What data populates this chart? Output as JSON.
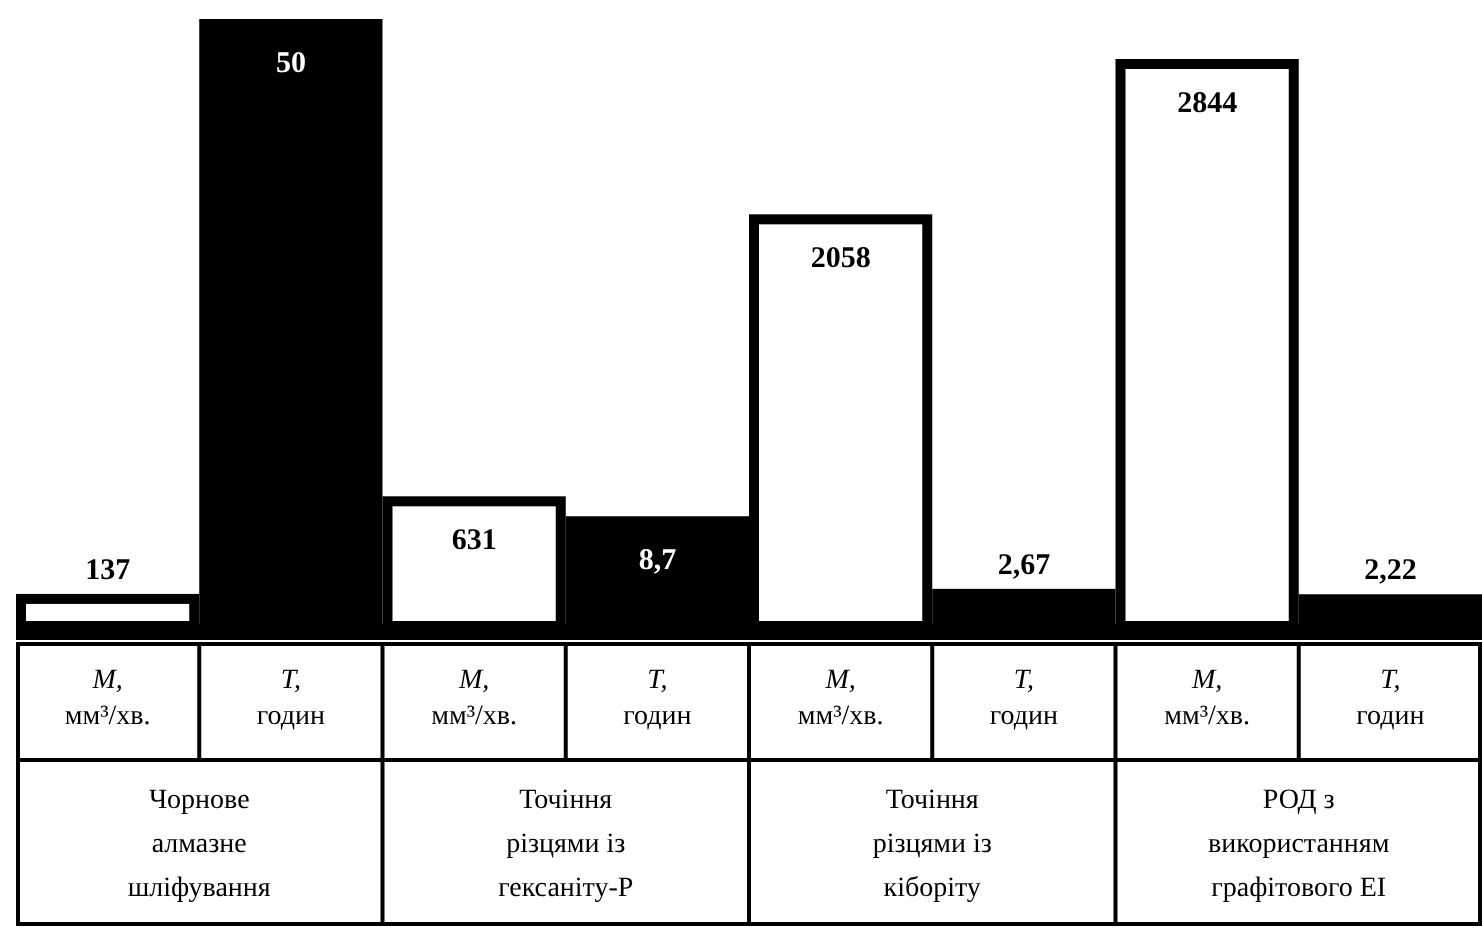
{
  "chart_data": {
    "type": "bar",
    "categories": [
      "Чорнове алмазне шліфування",
      "Точіння різцями із гексаніту-Р",
      "Точіння різцями із кіборіту",
      "РОД з використанням графітового ЕІ"
    ],
    "series": [
      {
        "name": "M, мм³/хв.",
        "color": "#ffffff",
        "values": [
          137,
          631,
          2058,
          2844
        ],
        "value_labels": [
          "137",
          "631",
          "2058",
          "2844"
        ]
      },
      {
        "name": "T, годин",
        "color": "#000000",
        "values": [
          50,
          8.7,
          2.67,
          2.22
        ],
        "value_labels": [
          "50",
          "8,7",
          "2,67",
          "2,22"
        ],
        "axis": "y2"
      }
    ]
  }
}
